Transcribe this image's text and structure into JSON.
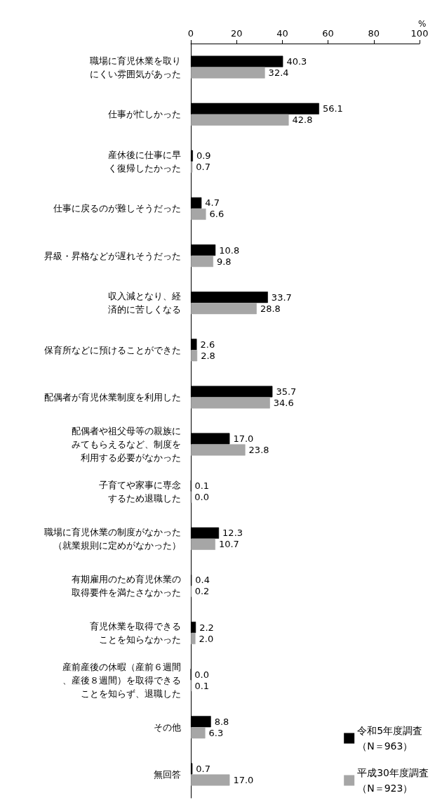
{
  "chart_data": {
    "type": "bar",
    "orientation": "horizontal",
    "xlabel": "%",
    "categories": [
      "職場に育児休業を取りにくい雰囲気があった",
      "仕事が忙しかった",
      "産休後に仕事に早く復帰したかった",
      "仕事に戻るのが難しそうだった",
      "昇級・昇格などが遅れそうだった",
      "収入減となり、経済的に苦しくなる",
      "保育所などに預けることができた",
      "配偶者が育児休業制度を利用した",
      "配偶者や祖父母等の親族にみてもらえるなど、制度を利用する必要がなかった",
      "子育てや家事に専念するため退職した",
      "職場に育児休業の制度がなかった（就業規則に定めがなかった）",
      "有期雇用のため育児休業の取得要件を満たさなかった",
      "育児休業を取得できることを知らなかった",
      "産前産後の休暇（産前６週間、産後８週間）を取得できることを知らず、退職した",
      "その他",
      "無回答"
    ],
    "series": [
      {
        "name": "令和5年度調査（N＝963）",
        "color": "#000000",
        "values": [
          40.3,
          56.1,
          0.9,
          4.7,
          10.8,
          33.7,
          2.6,
          35.7,
          17.0,
          0.1,
          12.3,
          0.4,
          2.2,
          0.0,
          8.8,
          0.7
        ],
        "value_labels": [
          "40.3",
          "56.1",
          "0.9",
          "4.7",
          "10.8",
          "33.7",
          "2.6",
          "35.7",
          "17.0",
          "0.1",
          "12.3",
          "0.4",
          "2.2",
          "0.0",
          "8.8",
          "0.7"
        ]
      },
      {
        "name": "平成30年度調査（N＝923）",
        "color": "#a6a6a6",
        "values": [
          32.4,
          42.8,
          0.7,
          6.6,
          9.8,
          28.8,
          2.8,
          34.6,
          23.8,
          0.0,
          10.7,
          0.2,
          2.0,
          0.1,
          6.3,
          17.0
        ],
        "value_labels": [
          "32.4",
          "42.8",
          "0.7",
          "6.6",
          "9.8",
          "28.8",
          "2.8",
          "34.6",
          "23.8",
          "0.0",
          "10.7",
          "0.2",
          "2.0",
          "0.1",
          "6.3",
          "17.0"
        ]
      }
    ],
    "xlim": [
      0,
      100
    ],
    "xticks": [
      0,
      20,
      40,
      60,
      80,
      100
    ],
    "grid": false,
    "legend": "bottom right"
  }
}
